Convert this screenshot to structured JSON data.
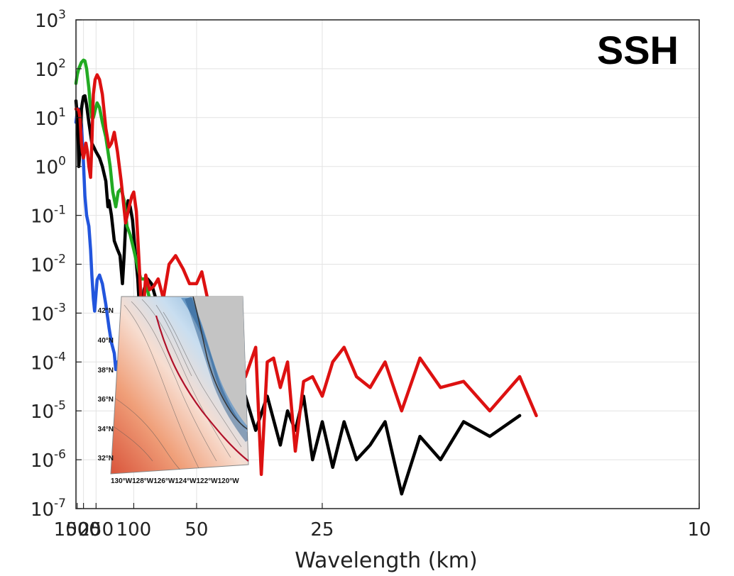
{
  "chart_data": {
    "type": "line",
    "title": "",
    "panel_label": "SSH",
    "xlabel": "Wavelength (km)",
    "ylabel": "",
    "x_scale": "reciprocal",
    "y_scale": "log",
    "xlim": [
      1250,
      10
    ],
    "ylim": [
      1e-07,
      1000
    ],
    "grid": true,
    "legend": "none",
    "x_ticks": [
      {
        "value": 1000,
        "label": "1000"
      },
      {
        "value": 500,
        "label": "500"
      },
      {
        "value": 250,
        "label": "250"
      },
      {
        "value": 100,
        "label": "100"
      },
      {
        "value": 50,
        "label": "50"
      },
      {
        "value": 25,
        "label": "25"
      },
      {
        "value": 10,
        "label": "10"
      }
    ],
    "y_ticks": [
      {
        "value": 1e-07,
        "base": "10",
        "exp": "-7"
      },
      {
        "value": 1e-06,
        "base": "10",
        "exp": "-6"
      },
      {
        "value": 1e-05,
        "base": "10",
        "exp": "-5"
      },
      {
        "value": 0.0001,
        "base": "10",
        "exp": "-4"
      },
      {
        "value": 0.001,
        "base": "10",
        "exp": "-3"
      },
      {
        "value": 0.01,
        "base": "10",
        "exp": "-2"
      },
      {
        "value": 0.1,
        "base": "10",
        "exp": "-1"
      },
      {
        "value": 1,
        "base": "10",
        "exp": "0"
      },
      {
        "value": 10,
        "base": "10",
        "exp": "1"
      },
      {
        "value": 100,
        "base": "10",
        "exp": "2"
      },
      {
        "value": 1000,
        "base": "10",
        "exp": "3"
      }
    ],
    "series": [
      {
        "color": "#2255dd",
        "points": [
          [
            1250,
            8
          ],
          [
            1000,
            13
          ],
          [
            800,
            15
          ],
          [
            700,
            13
          ],
          [
            600,
            7
          ],
          [
            520,
            2
          ],
          [
            450,
            0.25
          ],
          [
            400,
            0.1
          ],
          [
            350,
            0.06
          ],
          [
            320,
            0.02
          ],
          [
            300,
            0.006
          ],
          [
            280,
            0.002
          ],
          [
            265,
            0.0011
          ],
          [
            240,
            0.0048
          ],
          [
            220,
            0.006
          ],
          [
            200,
            0.004
          ],
          [
            180,
            0.0015
          ],
          [
            165,
            0.0005
          ],
          [
            155,
            0.00025
          ],
          [
            145,
            0.00015
          ],
          [
            140,
            7e-05
          ],
          [
            135,
            0.0001
          ],
          [
            130,
            4.5e-05
          ],
          [
            125,
            7e-05
          ],
          [
            120,
            1.5e-05
          ],
          [
            115,
            4.8e-05
          ],
          [
            110,
            3.5e-05
          ],
          [
            105,
            3.2e-05
          ],
          [
            100,
            3e-05
          ]
        ]
      },
      {
        "color": "#000000",
        "points": [
          [
            1250,
            22
          ],
          [
            1100,
            15
          ],
          [
            950,
            7
          ],
          [
            850,
            3
          ],
          [
            800,
            1
          ],
          [
            700,
            2
          ],
          [
            650,
            4
          ],
          [
            600,
            15
          ],
          [
            550,
            20
          ],
          [
            500,
            27
          ],
          [
            450,
            28
          ],
          [
            400,
            18
          ],
          [
            350,
            8
          ],
          [
            300,
            3
          ],
          [
            250,
            2
          ],
          [
            220,
            1.5
          ],
          [
            200,
            1
          ],
          [
            180,
            0.5
          ],
          [
            170,
            0.15
          ],
          [
            165,
            0.2
          ],
          [
            155,
            0.1
          ],
          [
            145,
            0.03
          ],
          [
            135,
            0.02
          ],
          [
            128,
            0.015
          ],
          [
            122,
            0.004
          ],
          [
            118,
            0.015
          ],
          [
            114,
            0.1
          ],
          [
            110,
            0.2
          ],
          [
            106,
            0.15
          ],
          [
            102,
            0.08
          ],
          [
            98,
            0.02
          ],
          [
            94,
            0.005
          ],
          [
            90,
            0.0004
          ],
          [
            86,
            0.003
          ],
          [
            82,
            0.005
          ],
          [
            78,
            0.004
          ],
          [
            74,
            0.002
          ],
          [
            70,
            0.0004
          ],
          [
            66,
            0.002
          ],
          [
            62,
            0.0008
          ],
          [
            58,
            0.002
          ],
          [
            55,
            0.001
          ],
          [
            52,
            0.0002
          ],
          [
            50,
            4e-05
          ],
          [
            48,
            7e-05
          ],
          [
            46,
            0.0002
          ],
          [
            44,
            3e-05
          ],
          [
            42,
            0.0001
          ],
          [
            40,
            2e-06
          ],
          [
            38,
            5e-05
          ],
          [
            36,
            2e-05
          ],
          [
            34,
            4e-06
          ],
          [
            32,
            2e-05
          ],
          [
            30,
            2e-06
          ],
          [
            29,
            1e-05
          ],
          [
            28,
            4e-06
          ],
          [
            27,
            2e-05
          ],
          [
            26,
            1e-06
          ],
          [
            25,
            6e-06
          ],
          [
            24,
            7e-07
          ],
          [
            23,
            6e-06
          ],
          [
            22,
            1e-06
          ],
          [
            21,
            2e-06
          ],
          [
            20,
            6e-06
          ],
          [
            19,
            2e-07
          ],
          [
            18,
            3e-06
          ],
          [
            17,
            1e-06
          ],
          [
            16,
            6e-06
          ],
          [
            15,
            3e-06
          ],
          [
            14,
            8e-06
          ]
        ]
      },
      {
        "color": "#22aa22",
        "points": [
          [
            1250,
            50
          ],
          [
            1000,
            75
          ],
          [
            800,
            100
          ],
          [
            600,
            135
          ],
          [
            500,
            150
          ],
          [
            450,
            145
          ],
          [
            400,
            100
          ],
          [
            350,
            40
          ],
          [
            320,
            15
          ],
          [
            300,
            10
          ],
          [
            280,
            10
          ],
          [
            260,
            14
          ],
          [
            240,
            20
          ],
          [
            220,
            16
          ],
          [
            200,
            8
          ],
          [
            180,
            4
          ],
          [
            160,
            1
          ],
          [
            150,
            0.3
          ],
          [
            140,
            0.15
          ],
          [
            133,
            0.3
          ],
          [
            125,
            0.35
          ],
          [
            118,
            0.2
          ],
          [
            112,
            0.06
          ],
          [
            106,
            0.04
          ],
          [
            100,
            0.02
          ],
          [
            95,
            0.01
          ],
          [
            90,
            0.005
          ],
          [
            85,
            0.005
          ],
          [
            80,
            0.002
          ],
          [
            76,
            0.0015
          ],
          [
            72,
            0.0005
          ],
          [
            68,
            0.0002
          ],
          [
            66,
            7e-05
          ],
          [
            64,
            0.0002
          ],
          [
            62,
            3e-05
          ],
          [
            60,
            5e-05
          ],
          [
            58,
            0.0003
          ],
          [
            56,
            0.00015
          ],
          [
            54,
            0.0006
          ],
          [
            52,
            0.0009
          ],
          [
            50,
            0.0015
          ],
          [
            49,
            0.0012
          ]
        ]
      },
      {
        "color": "#dd1111",
        "points": [
          [
            1250,
            15
          ],
          [
            1000,
            15
          ],
          [
            800,
            14
          ],
          [
            700,
            10
          ],
          [
            600,
            3
          ],
          [
            550,
            2
          ],
          [
            500,
            1.5
          ],
          [
            450,
            2.2
          ],
          [
            420,
            3
          ],
          [
            380,
            2
          ],
          [
            350,
            1
          ],
          [
            320,
            0.6
          ],
          [
            300,
            3
          ],
          [
            280,
            30
          ],
          [
            260,
            60
          ],
          [
            240,
            75
          ],
          [
            220,
            60
          ],
          [
            200,
            30
          ],
          [
            180,
            6
          ],
          [
            165,
            2.5
          ],
          [
            155,
            3
          ],
          [
            145,
            5
          ],
          [
            135,
            2
          ],
          [
            125,
            0.5
          ],
          [
            115,
            0.07
          ],
          [
            108,
            0.15
          ],
          [
            103,
            0.25
          ],
          [
            100,
            0.3
          ],
          [
            96,
            0.12
          ],
          [
            92,
            0.01
          ],
          [
            88,
            0.0005
          ],
          [
            84,
            0.006
          ],
          [
            80,
            0.003
          ],
          [
            76,
            0.0035
          ],
          [
            72,
            0.005
          ],
          [
            68,
            0.002
          ],
          [
            64,
            0.01
          ],
          [
            60,
            0.015
          ],
          [
            56,
            0.008
          ],
          [
            53,
            0.004
          ],
          [
            50,
            0.004
          ],
          [
            48,
            0.007
          ],
          [
            46,
            0.002
          ],
          [
            44,
            0.001
          ],
          [
            42,
            0.00015
          ],
          [
            40,
            5e-05
          ],
          [
            38,
            0.0002
          ],
          [
            36,
            5e-05
          ],
          [
            34,
            0.0002
          ],
          [
            33,
            5e-07
          ],
          [
            32,
            0.0001
          ],
          [
            31,
            0.00012
          ],
          [
            30,
            3e-05
          ],
          [
            29,
            0.0001
          ],
          [
            28,
            1.5e-06
          ],
          [
            27,
            4e-05
          ],
          [
            26,
            5e-05
          ],
          [
            25,
            2e-05
          ],
          [
            24,
            0.0001
          ],
          [
            23,
            0.0002
          ],
          [
            22,
            5e-05
          ],
          [
            21,
            3e-05
          ],
          [
            20,
            0.0001
          ],
          [
            19,
            1e-05
          ],
          [
            18,
            0.00012
          ],
          [
            17,
            3e-05
          ],
          [
            16,
            4e-05
          ],
          [
            15,
            1e-05
          ],
          [
            14,
            5e-05
          ],
          [
            13.5,
            8e-06
          ]
        ]
      }
    ]
  },
  "inset": {
    "lat_labels": [
      "42°N",
      "40°N",
      "38°N",
      "36°N",
      "34°N",
      "32°N"
    ],
    "lon_labels": "130°W128°W126°W124°W122°W120°W"
  }
}
